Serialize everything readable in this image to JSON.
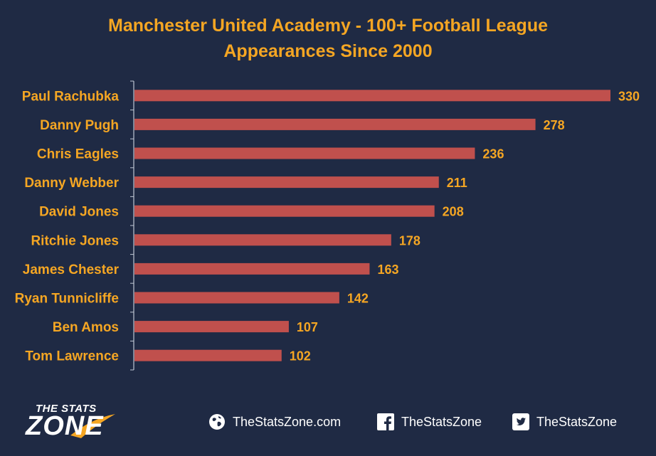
{
  "title_line1": "Manchester United Academy - 100+ Football League",
  "title_line2": "Appearances Since 2000",
  "colors": {
    "background": "#1f2a44",
    "bar": "#c0504d",
    "label": "#f5a623",
    "axis": "#bfc6d4"
  },
  "chart_data": {
    "type": "bar",
    "orientation": "horizontal",
    "title": "Manchester United Academy - 100+ Football League Appearances Since 2000",
    "categories": [
      "Paul Rachubka",
      "Danny Pugh",
      "Chris Eagles",
      "Danny Webber",
      "David Jones",
      "Ritchie Jones",
      "James Chester",
      "Ryan Tunnicliffe",
      "Ben Amos",
      "Tom Lawrence"
    ],
    "values": [
      330,
      278,
      236,
      211,
      208,
      178,
      163,
      142,
      107,
      102
    ],
    "xlim": [
      0,
      330
    ],
    "grid": false,
    "data_labels": true
  },
  "footer": {
    "logo_top": "THE STATS",
    "logo_big": "ZONE",
    "website": "TheStatsZone.com",
    "facebook": "TheStatsZone",
    "twitter": "TheStatsZone",
    "icons": [
      "globe-icon",
      "facebook-icon",
      "twitter-icon"
    ]
  }
}
